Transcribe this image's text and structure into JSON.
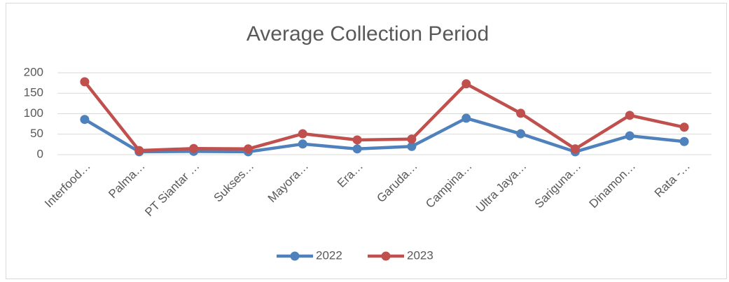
{
  "chart_data": {
    "type": "line",
    "title": "Average Collection Period",
    "categories": [
      "Interfood…",
      "Palma…",
      "PT Siantar …",
      "Sukses…",
      "Mayora…",
      "Era…",
      "Garuda…",
      "Campina…",
      "Ultra Jaya…",
      "Sariguna…",
      "Dinamon…",
      "Rata -…"
    ],
    "series": [
      {
        "name": "2022",
        "color": "#4f81bd",
        "values": [
          86,
          7,
          8,
          7,
          26,
          14,
          20,
          89,
          51,
          7,
          46,
          32
        ]
      },
      {
        "name": "2023",
        "color": "#c0504d",
        "values": [
          178,
          10,
          15,
          14,
          51,
          36,
          38,
          173,
          101,
          14,
          96,
          67
        ]
      }
    ],
    "ylim": [
      0,
      200
    ],
    "yticks": [
      0,
      50,
      100,
      150,
      200
    ],
    "grid": true,
    "legend": "bottom"
  }
}
